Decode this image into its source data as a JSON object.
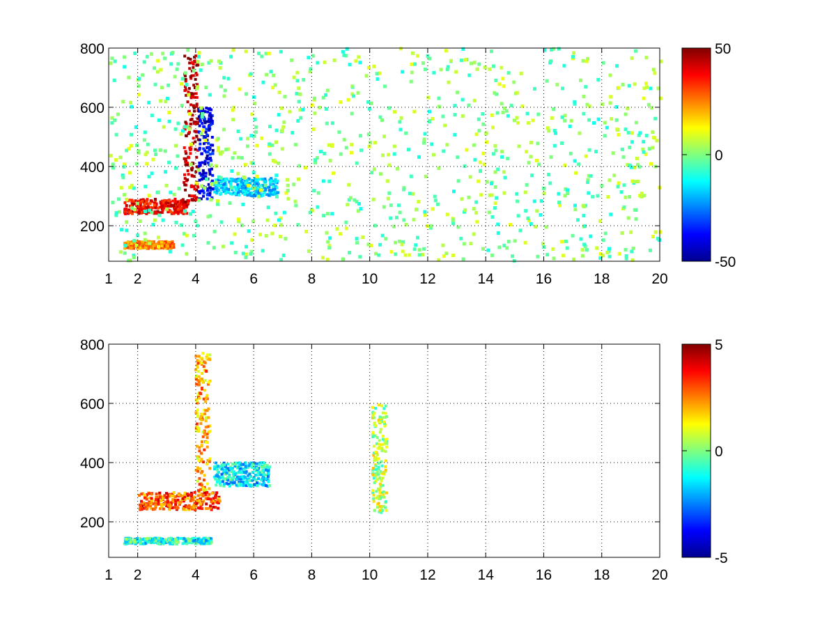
{
  "chart_data": [
    {
      "type": "heatmap",
      "title": "",
      "xlabel": "",
      "ylabel": "",
      "x_axis": {
        "scale": "linear",
        "range": [
          1,
          20
        ],
        "tick_values": [
          1,
          2,
          4,
          6,
          8,
          10,
          12,
          14,
          16,
          18,
          20
        ],
        "tick_labels": [
          "1",
          "2",
          "4",
          "6",
          "8",
          "10",
          "12",
          "14",
          "16",
          "18",
          "20"
        ]
      },
      "y_axis": {
        "range": [
          80,
          800
        ],
        "tick_values": [
          200,
          400,
          600,
          800
        ],
        "tick_labels": [
          "200",
          "400",
          "600",
          "800"
        ]
      },
      "grid": "dotted",
      "colormap": "jet",
      "colorbar": {
        "range": [
          -50,
          50
        ],
        "tick_values": [
          50,
          0,
          -50
        ],
        "tick_labels": [
          "50",
          "0",
          "-50"
        ]
      },
      "missing_values": "white",
      "features": [
        {
          "shape": "band",
          "x_range": [
            1.5,
            3.7
          ],
          "y_center": 265,
          "y_spread": 25,
          "value": 38
        },
        {
          "shape": "band",
          "x_range": [
            1.5,
            3.2
          ],
          "y_center": 135,
          "y_spread": 12,
          "value": 25
        },
        {
          "shape": "column",
          "x_center": 3.8,
          "y_range": [
            280,
            780
          ],
          "value": 45
        },
        {
          "shape": "column",
          "x_center": 4.3,
          "y_range": [
            290,
            600
          ],
          "value": -40
        },
        {
          "shape": "band",
          "x_range": [
            4.6,
            6.8
          ],
          "y_center": 330,
          "y_spread": 30,
          "value": -18
        }
      ]
    },
    {
      "type": "heatmap",
      "title": "",
      "xlabel": "",
      "ylabel": "",
      "x_axis": {
        "scale": "linear",
        "range": [
          1,
          20
        ],
        "tick_values": [
          1,
          2,
          4,
          6,
          8,
          10,
          12,
          14,
          16,
          18,
          20
        ],
        "tick_labels": [
          "1",
          "2",
          "4",
          "6",
          "8",
          "10",
          "12",
          "14",
          "16",
          "18",
          "20"
        ]
      },
      "y_axis": {
        "range": [
          80,
          800
        ],
        "tick_values": [
          200,
          400,
          600,
          800
        ],
        "tick_labels": [
          "200",
          "400",
          "600",
          "800"
        ]
      },
      "grid": "dotted",
      "colormap": "jet",
      "colorbar": {
        "range": [
          -5,
          5
        ],
        "tick_values": [
          5,
          0,
          -5
        ],
        "tick_labels": [
          "5",
          "0",
          "-5"
        ]
      },
      "missing_values": "white",
      "features": [
        {
          "shape": "band",
          "x_range": [
            2.0,
            4.8
          ],
          "y_center": 270,
          "y_spread": 30,
          "value": 3
        },
        {
          "shape": "column",
          "x_center": 4.2,
          "y_range": [
            300,
            780
          ],
          "value": 2
        },
        {
          "shape": "band",
          "x_range": [
            4.6,
            6.5
          ],
          "y_center": 360,
          "y_spread": 40,
          "value": -1.5
        },
        {
          "shape": "band",
          "x_range": [
            1.5,
            4.5
          ],
          "y_center": 135,
          "y_spread": 10,
          "value": -1
        },
        {
          "shape": "column",
          "x_center": 10.3,
          "y_range": [
            230,
            600
          ],
          "value": 0.5
        }
      ]
    }
  ]
}
